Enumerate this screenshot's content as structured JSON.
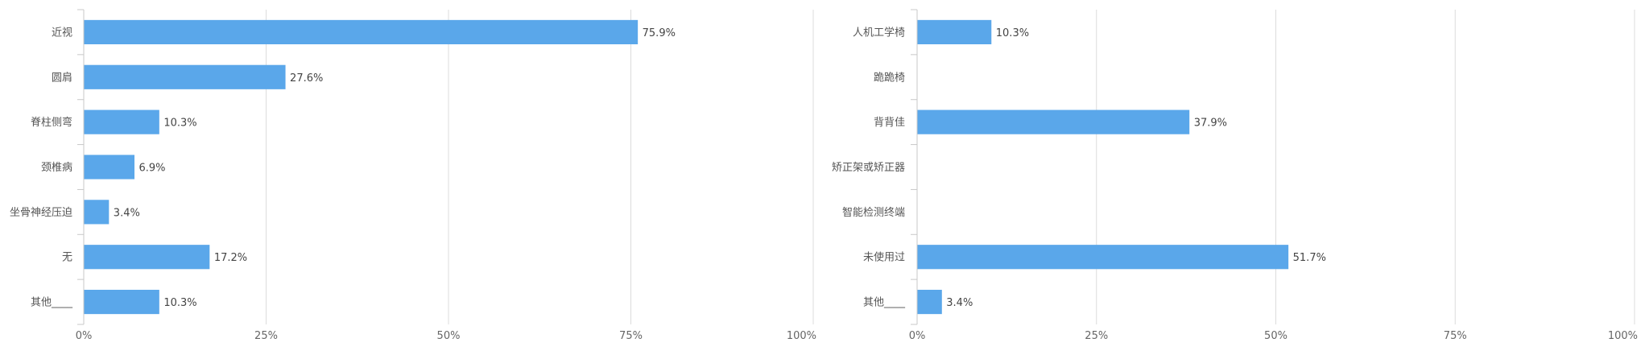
{
  "colors": {
    "bar": "#5aa7ea",
    "grid": "#dcdcdc",
    "axis": "#c8c8c8"
  },
  "chart_data": [
    {
      "type": "bar",
      "orientation": "horizontal",
      "categories": [
        "近视",
        "圆肩",
        "脊柱侧弯",
        "颈椎病",
        "坐骨神经压迫",
        "无",
        "其他____"
      ],
      "values": [
        75.9,
        27.6,
        10.3,
        6.9,
        3.4,
        17.2,
        10.3
      ],
      "value_labels": [
        "75.9%",
        "27.6%",
        "10.3%",
        "6.9%",
        "3.4%",
        "17.2%",
        "10.3%"
      ],
      "x_ticks": [
        "0%",
        "25%",
        "50%",
        "75%",
        "100%"
      ],
      "xlim": [
        0,
        100
      ],
      "grid": true
    },
    {
      "type": "bar",
      "orientation": "horizontal",
      "categories": [
        "人机工学椅",
        "跪跪椅",
        "背背佳",
        "矫正架或矫正器",
        "智能检测终端",
        "未使用过",
        "其他____"
      ],
      "values": [
        10.3,
        0,
        37.9,
        0,
        0,
        51.7,
        3.4
      ],
      "value_labels": [
        "10.3%",
        "",
        "37.9%",
        "",
        "",
        "51.7%",
        "3.4%"
      ],
      "x_ticks": [
        "0%",
        "25%",
        "50%",
        "75%",
        "100%"
      ],
      "xlim": [
        0,
        100
      ],
      "grid": true
    }
  ]
}
